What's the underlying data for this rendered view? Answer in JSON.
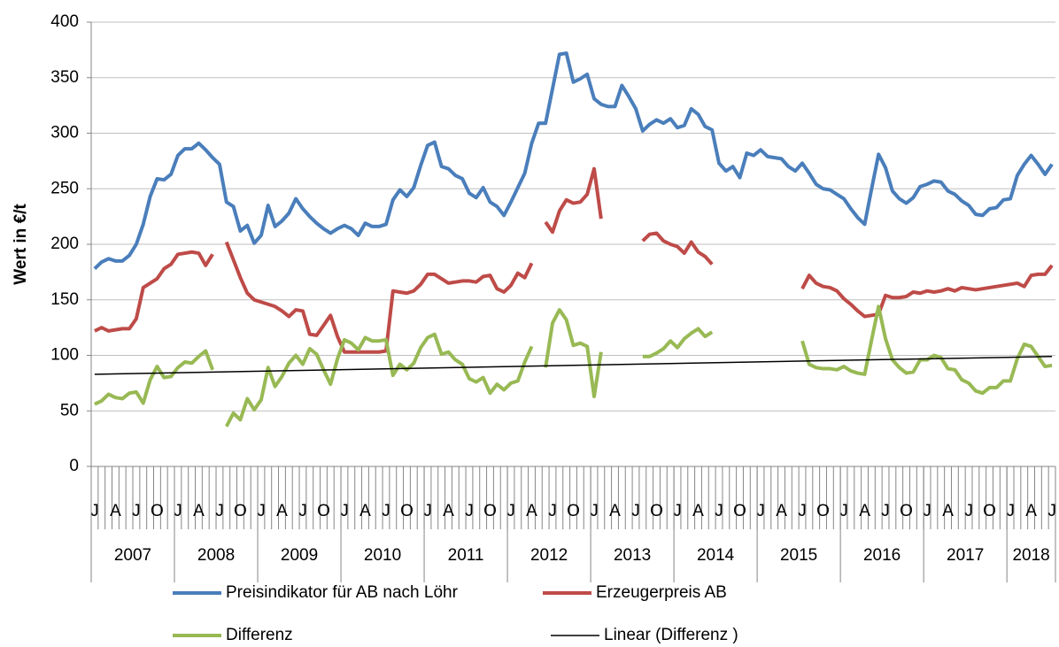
{
  "chart_data": {
    "type": "line",
    "y_label": "Wert  in €/t",
    "ylim": [
      0,
      400
    ],
    "yticks": [
      0,
      50,
      100,
      150,
      200,
      250,
      300,
      350,
      400
    ],
    "grid": true,
    "categories": [
      "J",
      null,
      null,
      "A",
      null,
      null,
      "J",
      null,
      null,
      "O",
      null,
      null,
      "J",
      null,
      null,
      "A",
      null,
      null,
      "J",
      null,
      null,
      "O",
      null,
      null,
      "J",
      null,
      null,
      "A",
      null,
      null,
      "J",
      null,
      null,
      "O",
      null,
      null,
      "J",
      null,
      null,
      "A",
      null,
      null,
      "J",
      null,
      null,
      "O",
      null,
      null,
      "J",
      null,
      null,
      "A",
      null,
      null,
      "J",
      null,
      null,
      "O",
      null,
      null,
      "J",
      null,
      null,
      "A",
      null,
      null,
      "J",
      null,
      null,
      "O",
      null,
      null,
      "J",
      null,
      null,
      "A",
      null,
      null,
      "J",
      null,
      null,
      "O",
      null,
      null,
      "J",
      null,
      null,
      "A",
      null,
      null,
      "J",
      null,
      null,
      "O",
      null,
      null,
      "J",
      null,
      null,
      "A",
      null,
      null,
      "J",
      null,
      null,
      "O",
      null,
      null,
      "J",
      null,
      null,
      "A",
      null,
      null,
      "J",
      null,
      null,
      "O",
      null,
      null,
      "J",
      null,
      null,
      "A",
      null,
      null,
      "J",
      null,
      null,
      "O",
      null,
      null,
      "J",
      null,
      null,
      "A",
      null,
      null,
      "J"
    ],
    "groups": [
      {
        "label": "2007",
        "count": 12
      },
      {
        "label": "2008",
        "count": 12
      },
      {
        "label": "2009",
        "count": 12
      },
      {
        "label": "2010",
        "count": 12
      },
      {
        "label": "2011",
        "count": 12
      },
      {
        "label": "2012",
        "count": 12
      },
      {
        "label": "2013",
        "count": 12
      },
      {
        "label": "2014",
        "count": 12
      },
      {
        "label": "2015",
        "count": 12
      },
      {
        "label": "2016",
        "count": 12
      },
      {
        "label": "2017",
        "count": 12
      },
      {
        "label": "2018",
        "count": 7
      }
    ],
    "series": [
      {
        "name": "Preisindikator für AB nach Löhr",
        "color": "#4a7ebb",
        "values": [
          178,
          184,
          187,
          185,
          185,
          190,
          200,
          218,
          243,
          259,
          258,
          263,
          280,
          286,
          286,
          291,
          285,
          278,
          272,
          238,
          234,
          212,
          217,
          201,
          208,
          235,
          216,
          221,
          228,
          241,
          232,
          225,
          219,
          214,
          210,
          214,
          217,
          214,
          208,
          219,
          216,
          216,
          218,
          240,
          249,
          243,
          251,
          271,
          289,
          292,
          270,
          268,
          262,
          259,
          246,
          242,
          251,
          238,
          234,
          226,
          238,
          251,
          264,
          291,
          309,
          309,
          340,
          371,
          372,
          346,
          349,
          353,
          331,
          326,
          324,
          324,
          343,
          333,
          322,
          302,
          308,
          312,
          309,
          313,
          305,
          307,
          322,
          317,
          306,
          303,
          273,
          266,
          270,
          260,
          282,
          280,
          285,
          279,
          278,
          277,
          270,
          266,
          273,
          264,
          254,
          250,
          249,
          245,
          241,
          232,
          224,
          218,
          250,
          281,
          269,
          248,
          241,
          237,
          242,
          252,
          254,
          257,
          256,
          248,
          245,
          239,
          235,
          227,
          226,
          232,
          233,
          240,
          241,
          262,
          272,
          280,
          272,
          263,
          272
        ]
      },
      {
        "name": "Erzeugerpreis AB",
        "color": "#be4b48",
        "values": [
          122,
          125,
          122,
          123,
          124,
          124,
          133,
          161,
          165,
          169,
          178,
          182,
          191,
          192,
          193,
          192,
          181,
          191,
          null,
          202,
          186,
          170,
          156,
          150,
          148,
          146,
          144,
          140,
          135,
          141,
          140,
          119,
          118,
          127,
          136,
          117,
          103,
          103,
          103,
          103,
          103,
          103,
          104,
          158,
          157,
          156,
          158,
          164,
          173,
          173,
          169,
          165,
          166,
          167,
          167,
          166,
          171,
          172,
          160,
          157,
          163,
          174,
          170,
          183,
          null,
          220,
          211,
          230,
          240,
          237,
          238,
          245,
          268,
          223,
          null,
          null,
          null,
          null,
          null,
          203,
          209,
          210,
          203,
          200,
          198,
          192,
          202,
          193,
          189,
          182,
          null,
          null,
          null,
          null,
          null,
          null,
          null,
          null,
          null,
          null,
          null,
          null,
          160,
          172,
          165,
          162,
          161,
          158,
          151,
          146,
          140,
          135,
          136,
          137,
          154,
          152,
          152,
          153,
          157,
          156,
          158,
          157,
          158,
          160,
          158,
          161,
          160,
          159,
          160,
          161,
          162,
          163,
          164,
          165,
          162,
          172,
          173,
          173,
          181
        ]
      },
      {
        "name": "Differenz",
        "color": "#98b954",
        "values": [
          56,
          59,
          65,
          62,
          61,
          66,
          67,
          57,
          78,
          90,
          80,
          81,
          89,
          94,
          93,
          99,
          104,
          87,
          null,
          36,
          48,
          42,
          61,
          51,
          60,
          89,
          72,
          81,
          93,
          100,
          92,
          106,
          101,
          87,
          74,
          97,
          114,
          111,
          105,
          116,
          113,
          113,
          114,
          82,
          92,
          87,
          93,
          107,
          116,
          119,
          101,
          103,
          96,
          92,
          79,
          76,
          80,
          66,
          74,
          69,
          75,
          77,
          94,
          108,
          null,
          89,
          129,
          141,
          132,
          109,
          111,
          108,
          63,
          103,
          null,
          null,
          null,
          null,
          null,
          99,
          99,
          102,
          106,
          113,
          107,
          115,
          120,
          124,
          117,
          121,
          null,
          null,
          null,
          null,
          null,
          null,
          null,
          null,
          null,
          null,
          null,
          null,
          113,
          92,
          89,
          88,
          88,
          87,
          90,
          86,
          84,
          83,
          114,
          144,
          115,
          96,
          89,
          84,
          85,
          96,
          96,
          100,
          98,
          88,
          87,
          78,
          75,
          68,
          66,
          71,
          71,
          77,
          77,
          97,
          110,
          108,
          99,
          90,
          91
        ]
      }
    ],
    "trend": {
      "name": "Linear (Differenz )",
      "color": "#000000",
      "values": [
        83,
        99
      ]
    }
  }
}
